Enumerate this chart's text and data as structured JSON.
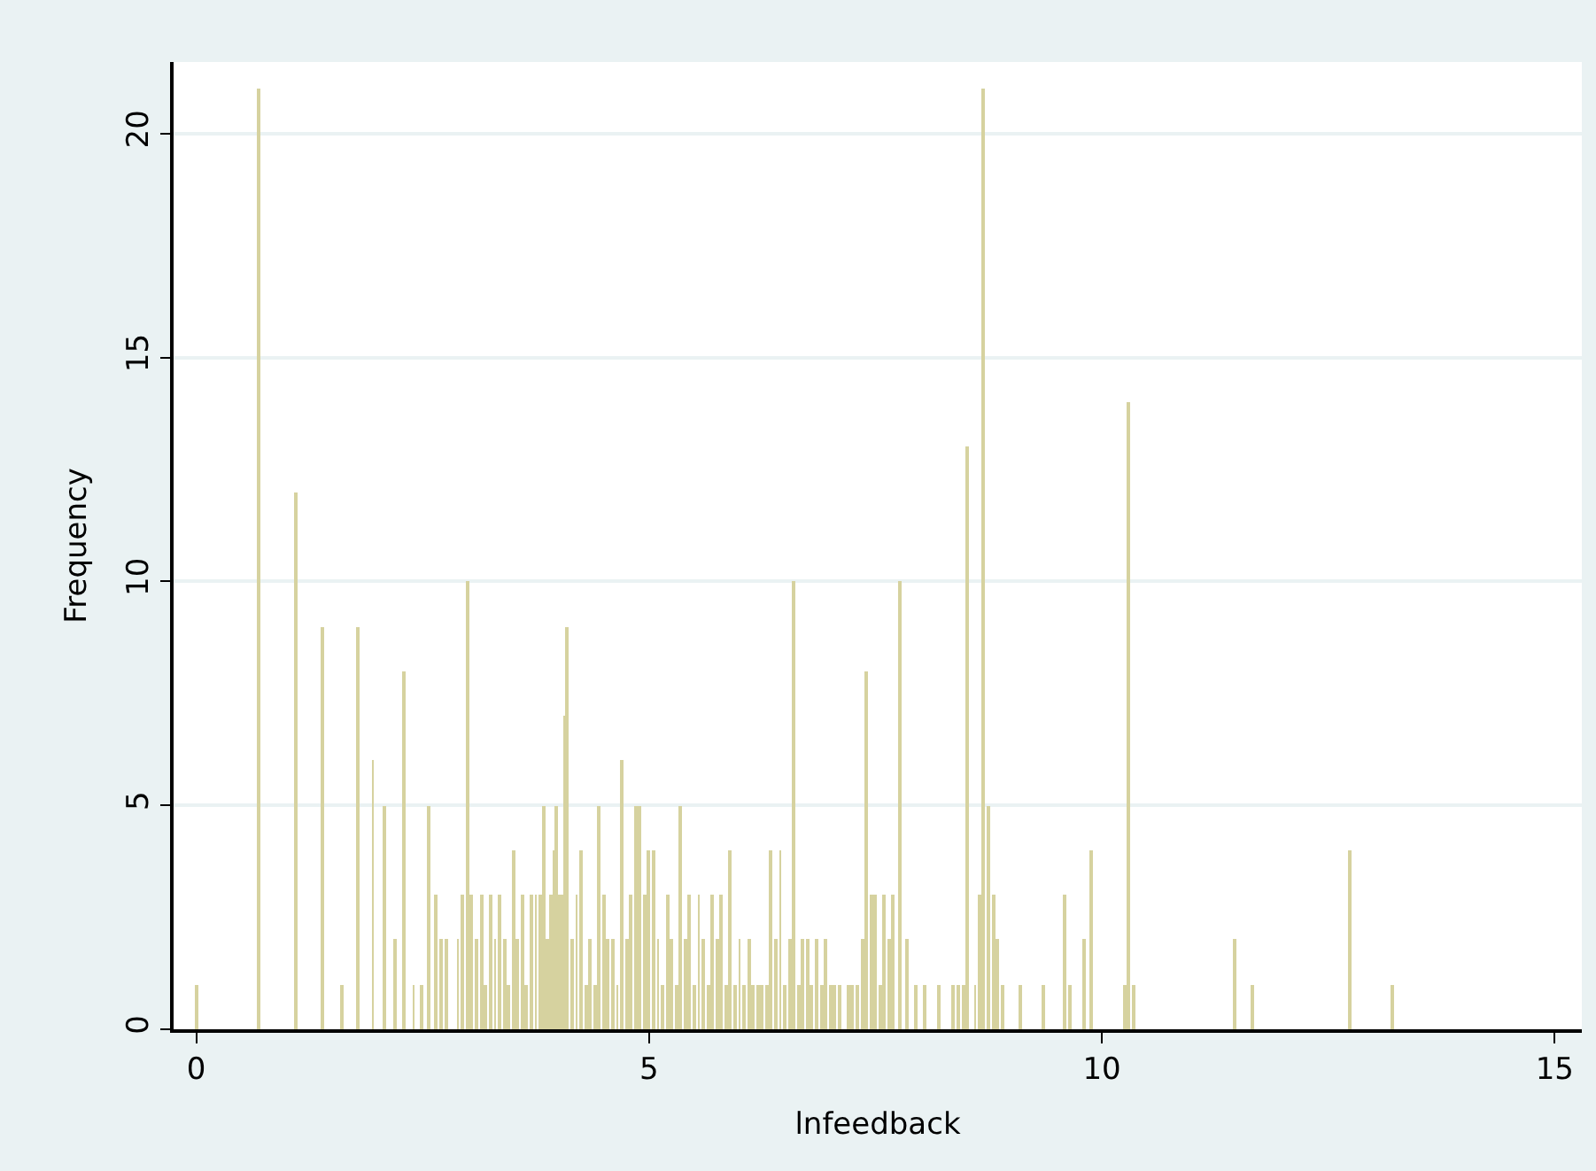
{
  "chart_data": {
    "type": "bar",
    "xlabel": "lnfeedback",
    "ylabel": "Frequency",
    "color": "#d6d29f",
    "grid": "y",
    "xlim": [
      -0.25,
      15.3
    ],
    "xticks": [
      0,
      5,
      10,
      15
    ],
    "ylim": [
      0,
      21.6
    ],
    "yticks": [
      0,
      5,
      10,
      15,
      20
    ],
    "x": [
      0,
      0.69,
      1.1,
      1.39,
      1.61,
      1.79,
      1.95,
      2.08,
      2.2,
      2.3,
      2.4,
      2.48,
      2.56,
      2.64,
      2.71,
      2.77,
      2.89,
      2.94,
      3.0,
      3.04,
      3.1,
      3.15,
      3.2,
      3.25,
      3.3,
      3.35,
      3.4,
      3.45,
      3.5,
      3.55,
      3.6,
      3.65,
      3.7,
      3.75,
      3.8,
      3.84,
      3.88,
      3.92,
      3.95,
      3.98,
      4.02,
      4.06,
      4.08,
      4.1,
      4.15,
      4.2,
      4.25,
      4.3,
      4.35,
      4.4,
      4.44,
      4.5,
      4.55,
      4.6,
      4.65,
      4.7,
      4.75,
      4.8,
      4.86,
      4.9,
      4.95,
      5.0,
      5.05,
      5.1,
      5.15,
      5.2,
      5.25,
      5.3,
      5.35,
      5.4,
      5.45,
      5.5,
      5.55,
      5.6,
      5.65,
      5.7,
      5.75,
      5.8,
      5.85,
      5.9,
      5.95,
      6.0,
      6.05,
      6.1,
      6.15,
      6.2,
      6.25,
      6.3,
      6.35,
      6.4,
      6.45,
      6.5,
      6.55,
      6.6,
      6.65,
      6.7,
      6.75,
      6.8,
      6.85,
      6.9,
      6.95,
      7.0,
      7.05,
      7.1,
      7.2,
      7.25,
      7.3,
      7.35,
      7.4,
      7.45,
      7.5,
      7.55,
      7.6,
      7.65,
      7.7,
      7.77,
      7.85,
      7.95,
      8.05,
      8.2,
      8.35,
      8.42,
      8.48,
      8.52,
      8.6,
      8.65,
      8.69,
      8.75,
      8.8,
      8.85,
      8.9,
      9.1,
      9.35,
      9.58,
      9.65,
      9.81,
      9.89,
      10.25,
      10.3,
      10.36,
      11.47,
      11.67,
      12.73,
      13.2
    ],
    "values": [
      1,
      21,
      12,
      9,
      1,
      9,
      6,
      5,
      2,
      8,
      1,
      1,
      5,
      3,
      2,
      2,
      2,
      3,
      10,
      3,
      2,
      3,
      1,
      3,
      2,
      3,
      2,
      1,
      4,
      2,
      3,
      1,
      3,
      3,
      3,
      5,
      2,
      3,
      4,
      5,
      3,
      3,
      7,
      9,
      2,
      3,
      4,
      1,
      2,
      1,
      5,
      3,
      2,
      2,
      1,
      6,
      2,
      3,
      5,
      5,
      3,
      4,
      4,
      2,
      1,
      3,
      2,
      1,
      5,
      2,
      3,
      1,
      3,
      2,
      1,
      3,
      2,
      3,
      1,
      4,
      1,
      2,
      1,
      2,
      1,
      1,
      1,
      1,
      4,
      2,
      4,
      1,
      2,
      10,
      1,
      2,
      2,
      1,
      2,
      1,
      2,
      1,
      1,
      1,
      1,
      1,
      1,
      2,
      8,
      3,
      3,
      1,
      3,
      2,
      3,
      10,
      2,
      1,
      1,
      1,
      1,
      1,
      1,
      13,
      1,
      3,
      21,
      5,
      3,
      2,
      1,
      1,
      1,
      3,
      1,
      2,
      4,
      1,
      14,
      1,
      2,
      1,
      4,
      1
    ]
  }
}
